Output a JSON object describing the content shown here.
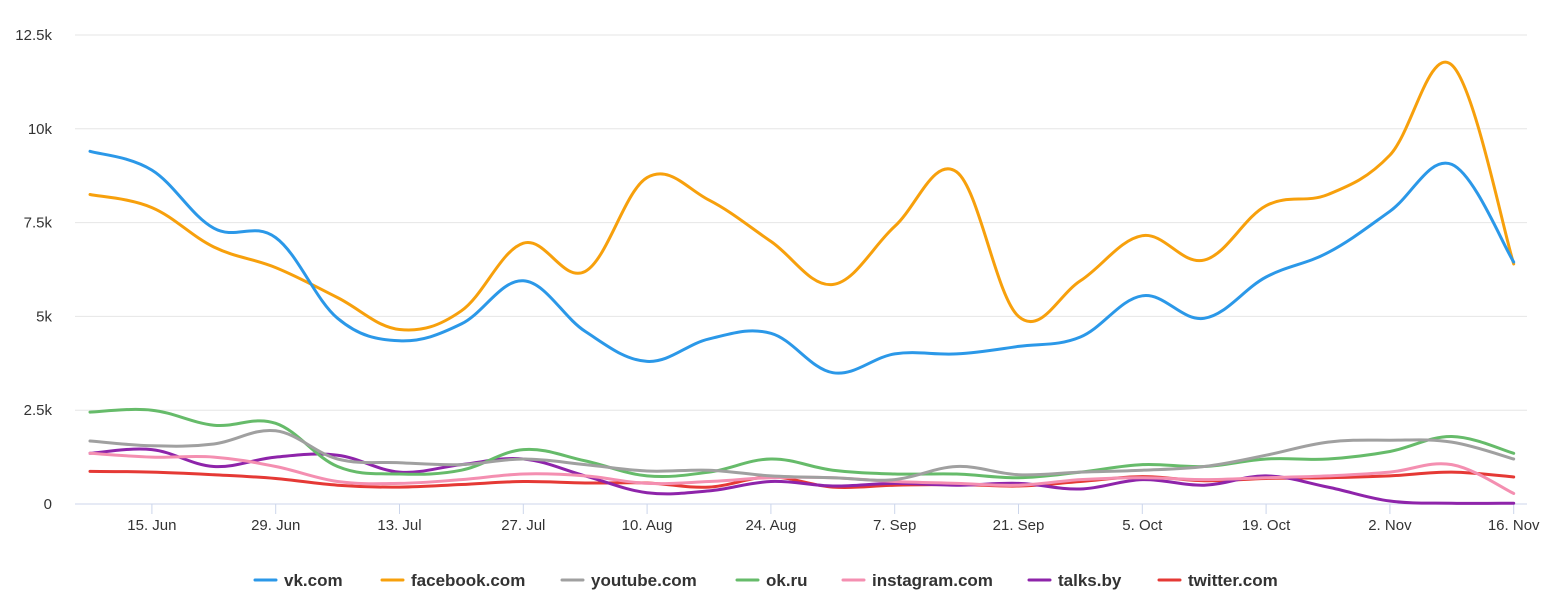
{
  "chart_data": {
    "type": "line",
    "title": "",
    "xlabel": "",
    "ylabel": "",
    "ylim": [
      0,
      12500
    ],
    "yticks": [
      0,
      2500,
      5000,
      7500,
      10000,
      12500
    ],
    "ytick_labels": [
      "0",
      "2.5k",
      "5k",
      "7.5k",
      "10k",
      "12.5k"
    ],
    "x": [
      "8. Jun",
      "15. Jun",
      "22. Jun",
      "29. Jun",
      "6. Jul",
      "13. Jul",
      "20. Jul",
      "27. Jul",
      "3. Aug",
      "10. Aug",
      "17. Aug",
      "24. Aug",
      "31. Aug",
      "7. Sep",
      "14. Sep",
      "21. Sep",
      "28. Sep",
      "5. Oct",
      "12. Oct",
      "19. Oct",
      "26. Oct",
      "2. Nov",
      "9. Nov",
      "16. Nov"
    ],
    "xtick_labels": [
      "15. Jun",
      "29. Jun",
      "13. Jul",
      "27. Jul",
      "10. Aug",
      "24. Aug",
      "7. Sep",
      "21. Sep",
      "5. Oct",
      "19. Oct",
      "2. Nov",
      "16. Nov"
    ],
    "grid": true,
    "legend_position": "bottom-center",
    "series": [
      {
        "name": "vk.com",
        "color": "#2b98e8",
        "values": [
          9400,
          8900,
          7350,
          7100,
          4950,
          4350,
          4800,
          5950,
          4600,
          3800,
          4400,
          4550,
          3500,
          4000,
          4000,
          4200,
          4450,
          5550,
          4950,
          6050,
          6700,
          7800,
          9050,
          6450
        ]
      },
      {
        "name": "facebook.com",
        "color": "#f7a00c",
        "values": [
          8250,
          7900,
          6850,
          6300,
          5500,
          4650,
          5150,
          6950,
          6200,
          8700,
          8100,
          7000,
          5850,
          7400,
          8850,
          5000,
          5950,
          7150,
          6500,
          7950,
          8250,
          9300,
          11700,
          6400
        ]
      },
      {
        "name": "youtube.com",
        "color": "#a0a0a0",
        "values": [
          1680,
          1550,
          1600,
          1950,
          1200,
          1100,
          1050,
          1200,
          1050,
          880,
          900,
          750,
          700,
          650,
          1000,
          780,
          850,
          900,
          1000,
          1300,
          1650,
          1700,
          1650,
          1200
        ]
      },
      {
        "name": "ok.ru",
        "color": "#66bb6a",
        "values": [
          2450,
          2500,
          2100,
          2150,
          1000,
          800,
          900,
          1450,
          1150,
          750,
          850,
          1200,
          900,
          800,
          800,
          700,
          850,
          1050,
          1000,
          1200,
          1200,
          1400,
          1800,
          1350
        ]
      },
      {
        "name": "instagram.com",
        "color": "#f48fb1",
        "values": [
          1350,
          1250,
          1250,
          1000,
          600,
          550,
          650,
          800,
          750,
          550,
          600,
          700,
          700,
          600,
          550,
          500,
          650,
          700,
          650,
          700,
          750,
          850,
          1050,
          280
        ]
      },
      {
        "name": "talks.by",
        "color": "#8e24aa",
        "values": [
          1350,
          1450,
          1000,
          1250,
          1300,
          850,
          1050,
          1200,
          750,
          300,
          350,
          600,
          480,
          550,
          500,
          550,
          400,
          650,
          500,
          750,
          450,
          80,
          20,
          20
        ]
      },
      {
        "name": "twitter.com",
        "color": "#e53935",
        "values": [
          870,
          850,
          780,
          680,
          500,
          450,
          520,
          600,
          560,
          560,
          450,
          720,
          450,
          500,
          520,
          480,
          600,
          730,
          620,
          680,
          700,
          750,
          850,
          720
        ]
      }
    ]
  }
}
